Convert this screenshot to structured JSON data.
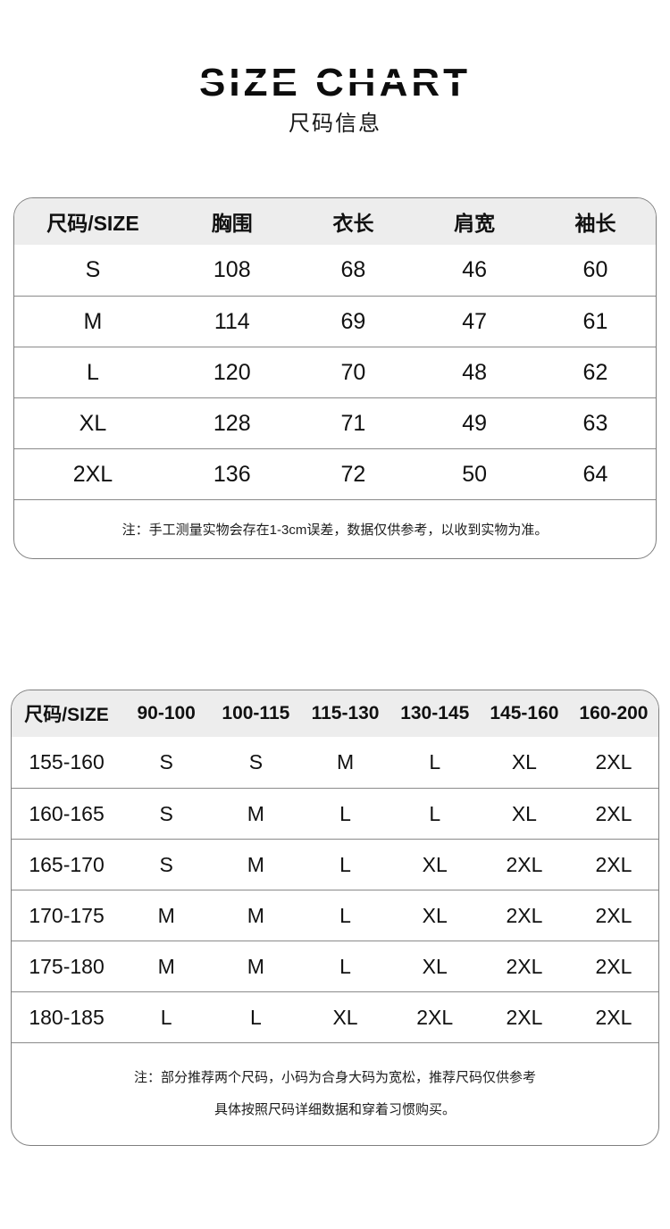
{
  "header": {
    "title": "SIZE CHART",
    "subtitle": "尺码信息"
  },
  "measurement_table": {
    "columns": [
      "尺码/SIZE",
      "胸围",
      "衣长",
      "肩宽",
      "袖长"
    ],
    "rows": [
      [
        "S",
        "108",
        "68",
        "46",
        "60"
      ],
      [
        "M",
        "114",
        "69",
        "47",
        "61"
      ],
      [
        "L",
        "120",
        "70",
        "48",
        "62"
      ],
      [
        "XL",
        "128",
        "71",
        "49",
        "63"
      ],
      [
        "2XL",
        "136",
        "72",
        "50",
        "64"
      ]
    ],
    "note": "注：手工测量实物会存在1-3cm误差，数据仅供参考，以收到实物为准。"
  },
  "recommendation_table": {
    "columns": [
      "尺码/SIZE",
      "90-100",
      "100-115",
      "115-130",
      "130-145",
      "145-160",
      "160-200"
    ],
    "rows": [
      [
        "155-160",
        "S",
        "S",
        "M",
        "L",
        "XL",
        "2XL"
      ],
      [
        "160-165",
        "S",
        "M",
        "L",
        "L",
        "XL",
        "2XL"
      ],
      [
        "165-170",
        "S",
        "M",
        "L",
        "XL",
        "2XL",
        "2XL"
      ],
      [
        "170-175",
        "M",
        "M",
        "L",
        "XL",
        "2XL",
        "2XL"
      ],
      [
        "175-180",
        "M",
        "M",
        "L",
        "XL",
        "2XL",
        "2XL"
      ],
      [
        "180-185",
        "L",
        "L",
        "XL",
        "2XL",
        "2XL",
        "2XL"
      ]
    ],
    "note_line1": "注：部分推荐两个尺码，小码为合身大码为宽松，推荐尺码仅供参考",
    "note_line2": "具体按照尺码详细数据和穿着习惯购买。"
  },
  "colors": {
    "header_bg": "#ededed",
    "border": "#7f7f7f",
    "row_line": "#8a8a8a",
    "text": "#111111",
    "page_bg": "#ffffff"
  }
}
